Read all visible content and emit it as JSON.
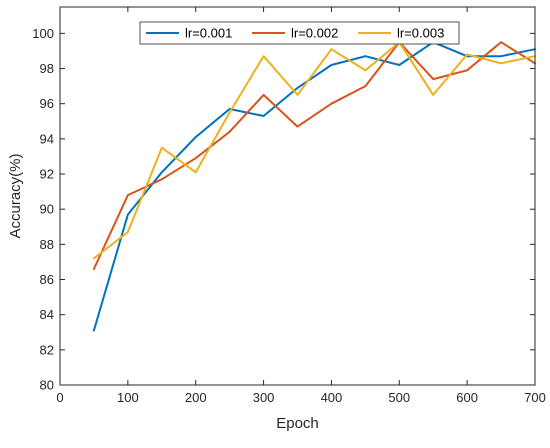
{
  "chart_data": {
    "type": "line",
    "xlabel": "Epoch",
    "ylabel": "Accuracy(%)",
    "xlim": [
      0,
      700
    ],
    "ylim": [
      80,
      101.5
    ],
    "xticks": [
      "0",
      "100",
      "200",
      "300",
      "400",
      "500",
      "600",
      "700"
    ],
    "yticks": [
      "80",
      "82",
      "84",
      "86",
      "88",
      "90",
      "92",
      "94",
      "96",
      "98",
      "100"
    ],
    "legend_position": "top-center",
    "grid": false,
    "x": [
      50,
      100,
      150,
      200,
      250,
      300,
      350,
      400,
      450,
      500,
      550,
      600,
      650,
      700
    ],
    "series": [
      {
        "name": "lr=0.001",
        "color": "#0072BD",
        "values": [
          83.1,
          89.7,
          92.1,
          94.1,
          95.7,
          95.3,
          96.9,
          98.2,
          98.7,
          98.2,
          99.5,
          98.7,
          98.7,
          99.1
        ]
      },
      {
        "name": "lr=0.002",
        "color": "#D95319",
        "values": [
          86.6,
          90.8,
          91.7,
          92.9,
          94.4,
          96.5,
          94.7,
          96.0,
          97.0,
          99.5,
          97.4,
          97.9,
          99.5,
          98.3
        ]
      },
      {
        "name": "lr=0.003",
        "color": "#EDB120",
        "values": [
          87.2,
          88.7,
          93.5,
          92.1,
          95.5,
          98.7,
          96.5,
          99.1,
          97.9,
          99.5,
          96.5,
          98.8,
          98.3,
          98.7
        ]
      }
    ]
  }
}
